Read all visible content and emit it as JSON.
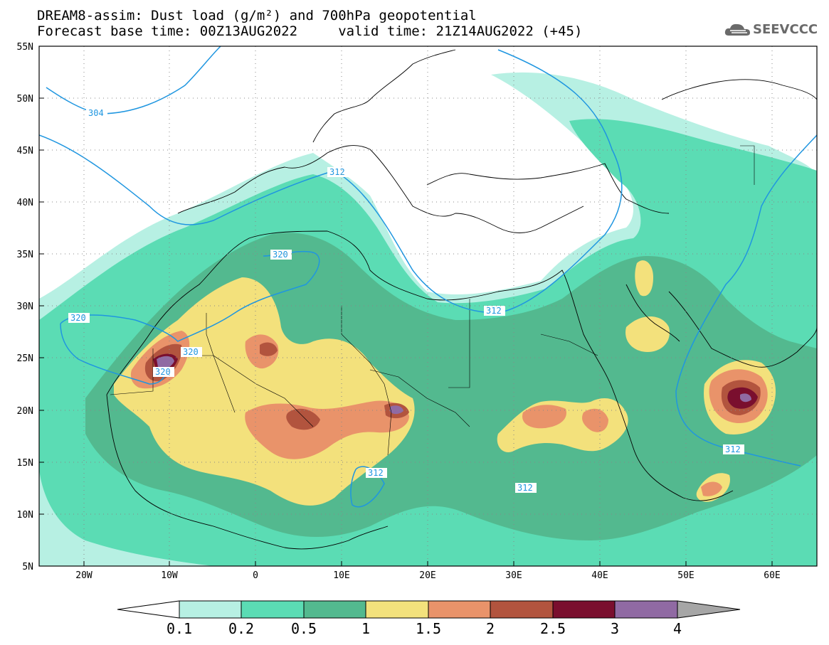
{
  "title": {
    "line1": "DREAM8-assim: Dust load (g/m²) and 700hPa geopotential",
    "line2": "Forecast base time: 00Z13AUG2022     valid time: 21Z14AUG2022 (+45)"
  },
  "logo": {
    "text": "SEEVCCC",
    "icon": "cloud-icon"
  },
  "axes": {
    "lat_labels": [
      "55N",
      "50N",
      "45N",
      "40N",
      "35N",
      "30N",
      "25N",
      "20N",
      "15N",
      "10N",
      "5N"
    ],
    "lon_labels": [
      "20W",
      "10W",
      "0",
      "10E",
      "20E",
      "30E",
      "40E",
      "50E",
      "60E"
    ]
  },
  "colorbar": {
    "ticks": [
      "0.1",
      "0.2",
      "0.5",
      "1",
      "1.5",
      "2",
      "2.5",
      "3",
      "4"
    ],
    "colors": [
      "#b7f0e3",
      "#5bdcb4",
      "#53b98f",
      "#f3e17c",
      "#e9936a",
      "#b2543e",
      "#7a0f2e",
      "#906aa3",
      "#a6a6a6"
    ]
  },
  "contours": {
    "labels": [
      "304",
      "312",
      "320",
      "320",
      "320",
      "320",
      "312",
      "312",
      "312",
      "312"
    ],
    "color": "#1f96e0"
  }
}
